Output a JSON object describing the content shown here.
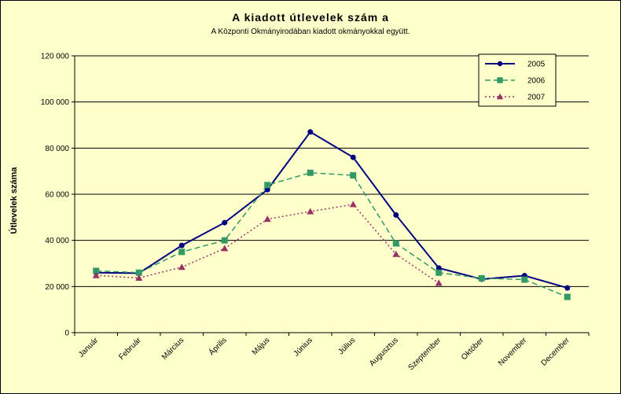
{
  "chart_data": {
    "type": "line",
    "title": "A  kiadott útlevelek szám a",
    "subtitle": "A Központi Okmányirodában kiadott okmányokkal együtt.",
    "ylabel": "Útlevelek száma",
    "xlabel": "",
    "categories": [
      "Január",
      "Február",
      "Március",
      "Április",
      "Május",
      "Június",
      "Július",
      "Augusztus",
      "Szeptember",
      "Október",
      "November",
      "December"
    ],
    "yticks": [
      "0",
      "20 000",
      "40 000",
      "60 000",
      "80 000",
      "100 000",
      "120 000"
    ],
    "ylim": [
      0,
      120000
    ],
    "grid": true,
    "legend_position": "top-right",
    "series": [
      {
        "name": "2005",
        "color": "#000080",
        "marker": "circle",
        "line": "solid",
        "values": [
          26000,
          25800,
          37800,
          47700,
          62000,
          87000,
          76000,
          51000,
          28000,
          23200,
          24700,
          19400
        ]
      },
      {
        "name": "2006",
        "color": "#339966",
        "marker": "square",
        "line": "dashed",
        "values": [
          26800,
          26000,
          35000,
          40000,
          64000,
          69300,
          68200,
          38700,
          26000,
          23600,
          23000,
          15500
        ]
      },
      {
        "name": "2007",
        "color": "#993366",
        "marker": "triangle",
        "line": "dotted",
        "values": [
          24800,
          23700,
          28400,
          36500,
          49200,
          52500,
          55600,
          34000,
          21500,
          null,
          null,
          null
        ]
      }
    ]
  }
}
